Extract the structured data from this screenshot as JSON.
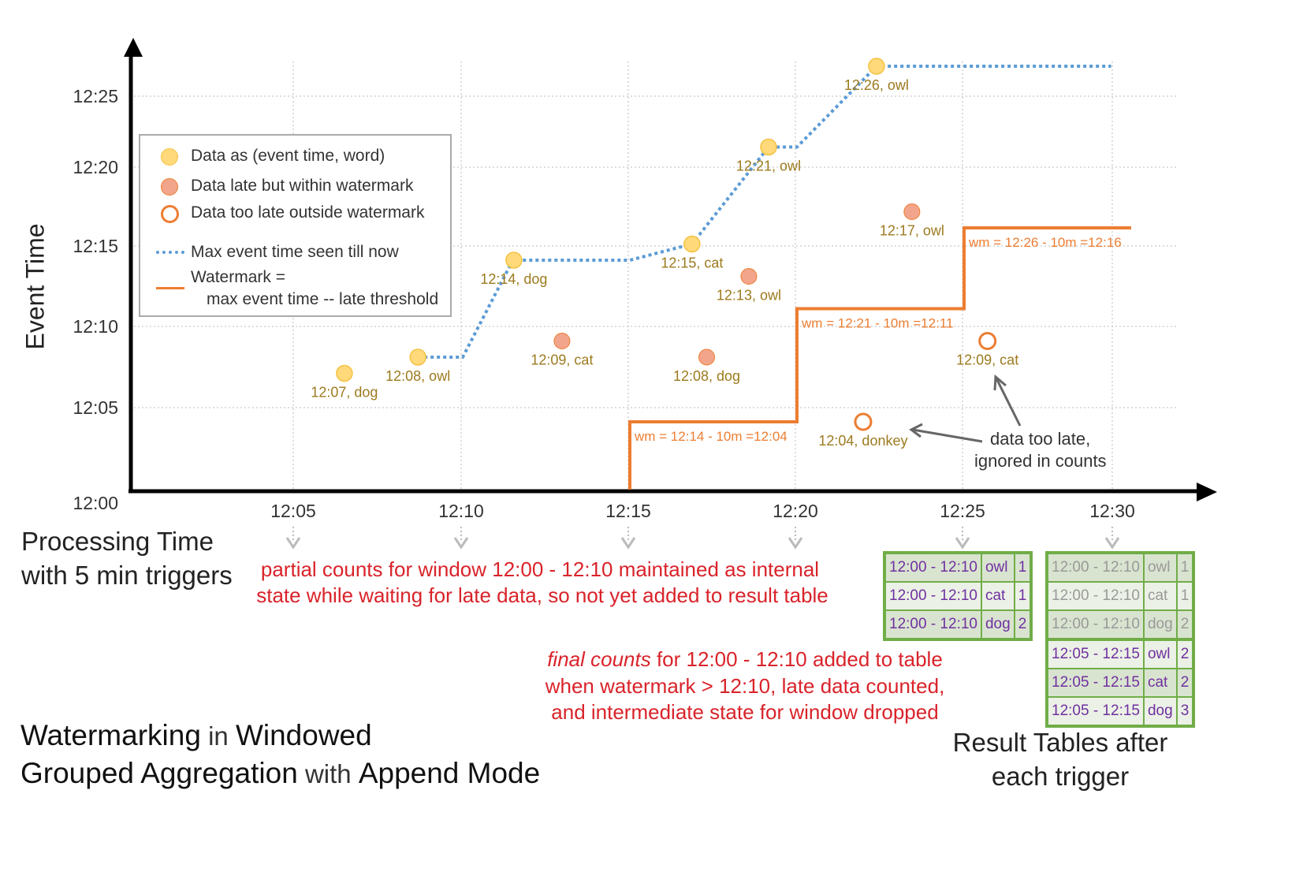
{
  "axes": {
    "y_label": "Event Time",
    "x_label_line1": "Processing Time",
    "x_label_line2": "with 5 min triggers",
    "y_ticks": [
      "12:00",
      "12:05",
      "12:10",
      "12:15",
      "12:20",
      "12:25"
    ],
    "x_ticks": [
      "12:05",
      "12:10",
      "12:15",
      "12:20",
      "12:25",
      "12:30"
    ]
  },
  "legend": {
    "data": "Data as (event time, word)",
    "late": "Data late but within watermark",
    "too_late": "Data too late outside watermark",
    "max": "Max event time seen till now",
    "wm1": "Watermark =",
    "wm2": "max event time -- late threshold"
  },
  "colors": {
    "on_time": "#ffd97a",
    "late": "#f2a58a",
    "too_late": "#ed7d31",
    "max_line": "#5b9bd5",
    "watermark": "#ed7d31",
    "label": "#9c7a1e",
    "annotation_red": "#d9232a",
    "table_border": "#70ad47",
    "table_text": "#7030a0"
  },
  "points": [
    {
      "label": "12:07, dog",
      "event": 7,
      "proc": 6.46,
      "kind": "on_time"
    },
    {
      "label": "12:08, owl",
      "event": 8,
      "proc": 8.66,
      "kind": "on_time"
    },
    {
      "label": "12:14, dog",
      "event": 14,
      "proc": 11.53,
      "kind": "on_time"
    },
    {
      "label": "12:09, cat",
      "event": 9,
      "proc": 12.97,
      "kind": "late"
    },
    {
      "label": "12:15, cat",
      "event": 15,
      "proc": 16.86,
      "kind": "on_time"
    },
    {
      "label": "12:08, dog",
      "event": 8,
      "proc": 17.3,
      "kind": "late"
    },
    {
      "label": "12:13, owl",
      "event": 13,
      "proc": 18.56,
      "kind": "late"
    },
    {
      "label": "12:21, owl",
      "event": 21,
      "proc": 19.15,
      "kind": "on_time"
    },
    {
      "label": "12:04, donkey",
      "event": 4,
      "proc": 21.98,
      "kind": "too_late"
    },
    {
      "label": "12:26, owl",
      "event": 26,
      "proc": 22.38,
      "kind": "on_time"
    },
    {
      "label": "12:17, owl",
      "event": 17,
      "proc": 23.44,
      "kind": "late"
    },
    {
      "label": "12:09, cat",
      "event": 9,
      "proc": 25.7,
      "kind": "too_late"
    }
  ],
  "max_event_line": [
    [
      8.66,
      8
    ],
    [
      10,
      8
    ],
    [
      11.5,
      14
    ],
    [
      15,
      14
    ],
    [
      16.86,
      15
    ],
    [
      19.15,
      21
    ],
    [
      20,
      21
    ],
    [
      22.38,
      26
    ],
    [
      29.4,
      26
    ]
  ],
  "watermark_steps": [
    {
      "from": 15,
      "to": 20,
      "value": 4,
      "label": "wm = 12:14 - 10m =12:04"
    },
    {
      "from": 20,
      "to": 25,
      "value": 11,
      "label": "wm = 12:21 - 10m =12:11"
    },
    {
      "from": 25,
      "to": 30,
      "value": 16,
      "label": "wm = 12:26 - 10m =12:16"
    }
  ],
  "annotations": {
    "too_late1": "data too late,",
    "too_late2": "ignored in counts",
    "partial1": "partial counts for window 12:00 - 12:10 maintained as internal",
    "partial2": "state while waiting for late data, so not yet added  to result table",
    "final_em": "final counts",
    "final1": " for 12:00 - 12:10 added to table",
    "final2": "when watermark > 12:10, late data counted,",
    "final3": "and intermediate state for window dropped",
    "result1": "Result Tables after",
    "result2": "each trigger"
  },
  "title": {
    "p1": "Watermarking",
    "p2": " in ",
    "p3": "Windowed",
    "p4": "Grouped Aggregation",
    "p5": " with ",
    "p6": "Append Mode"
  },
  "table_1225": [
    [
      "12:00 - 12:10",
      "owl",
      "1"
    ],
    [
      "12:00 - 12:10",
      "cat",
      "1"
    ],
    [
      "12:00 - 12:10",
      "dog",
      "2"
    ]
  ],
  "table_1230": [
    [
      "12:00 - 12:10",
      "owl",
      "1"
    ],
    [
      "12:00 - 12:10",
      "cat",
      "1"
    ],
    [
      "12:00 - 12:10",
      "dog",
      "2"
    ],
    [
      "12:05 - 12:15",
      "owl",
      "2"
    ],
    [
      "12:05 - 12:15",
      "cat",
      "2"
    ],
    [
      "12:05 - 12:15",
      "dog",
      "3"
    ]
  ]
}
